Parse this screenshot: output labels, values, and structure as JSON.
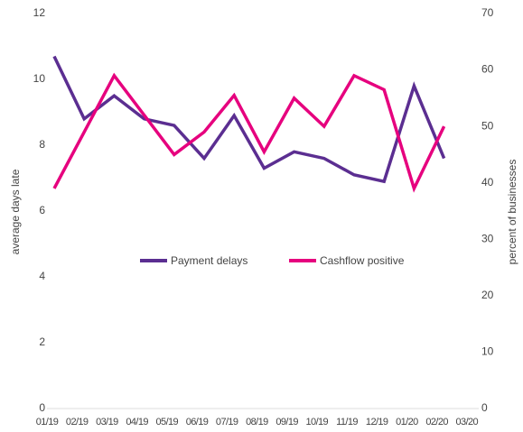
{
  "chart_data": {
    "type": "line",
    "categories": [
      "01/19",
      "02/19",
      "03/19",
      "04/19",
      "05/19",
      "06/19",
      "07/19",
      "08/19",
      "09/19",
      "10/19",
      "11/19",
      "12/19",
      "01/20",
      "02/20",
      "03/20"
    ],
    "y_label": "average days late",
    "y2_label": "percent of businesses",
    "ylim": [
      0,
      12
    ],
    "yticks": [
      0,
      2,
      4,
      6,
      8,
      10,
      12
    ],
    "y2lim": [
      0,
      70
    ],
    "y2ticks": [
      0,
      10,
      20,
      30,
      40,
      50,
      60,
      70
    ],
    "legend": "center",
    "series": [
      {
        "name": "Payment delays",
        "color": "#5b2e91",
        "values": [
          10.7,
          8.8,
          9.5,
          8.8,
          8.6,
          7.6,
          8.9,
          7.3,
          7.8,
          7.6,
          7.1,
          6.9,
          9.8,
          7.6,
          null
        ]
      },
      {
        "name": "Cashflow positive",
        "color": "#e6007e",
        "axis": "y2",
        "values": [
          39,
          49,
          59,
          52,
          45,
          49,
          55.5,
          45.5,
          55,
          50,
          59,
          56.5,
          39,
          50,
          null
        ]
      }
    ]
  }
}
